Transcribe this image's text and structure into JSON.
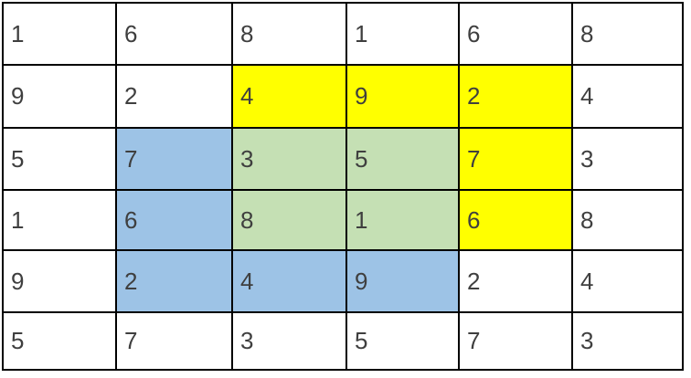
{
  "colors": {
    "white": "#FFFFFF",
    "yellow": "#FFFF00",
    "blue": "#9DC3E6",
    "green": "#C5E0B4",
    "border": "#000000",
    "text": "#3F3F3F"
  },
  "grid": {
    "rows": [
      {
        "cells": [
          {
            "value": "1",
            "bg": "white"
          },
          {
            "value": "6",
            "bg": "white"
          },
          {
            "value": "8",
            "bg": "white"
          },
          {
            "value": "1",
            "bg": "white"
          },
          {
            "value": "6",
            "bg": "white"
          },
          {
            "value": "8",
            "bg": "white"
          }
        ]
      },
      {
        "cells": [
          {
            "value": "9",
            "bg": "white"
          },
          {
            "value": "2",
            "bg": "white"
          },
          {
            "value": "4",
            "bg": "yellow"
          },
          {
            "value": "9",
            "bg": "yellow"
          },
          {
            "value": "2",
            "bg": "yellow"
          },
          {
            "value": "4",
            "bg": "white"
          }
        ]
      },
      {
        "cells": [
          {
            "value": "5",
            "bg": "white"
          },
          {
            "value": "7",
            "bg": "blue"
          },
          {
            "value": "3",
            "bg": "green"
          },
          {
            "value": "5",
            "bg": "green"
          },
          {
            "value": "7",
            "bg": "yellow"
          },
          {
            "value": "3",
            "bg": "white"
          }
        ]
      },
      {
        "cells": [
          {
            "value": "1",
            "bg": "white"
          },
          {
            "value": "6",
            "bg": "blue"
          },
          {
            "value": "8",
            "bg": "green"
          },
          {
            "value": "1",
            "bg": "green"
          },
          {
            "value": "6",
            "bg": "yellow"
          },
          {
            "value": "8",
            "bg": "white"
          }
        ]
      },
      {
        "cells": [
          {
            "value": "9",
            "bg": "white"
          },
          {
            "value": "2",
            "bg": "blue"
          },
          {
            "value": "4",
            "bg": "blue"
          },
          {
            "value": "9",
            "bg": "blue"
          },
          {
            "value": "2",
            "bg": "white"
          },
          {
            "value": "4",
            "bg": "white"
          }
        ]
      },
      {
        "cells": [
          {
            "value": "5",
            "bg": "white"
          },
          {
            "value": "7",
            "bg": "white"
          },
          {
            "value": "3",
            "bg": "white"
          },
          {
            "value": "5",
            "bg": "white"
          },
          {
            "value": "7",
            "bg": "white"
          },
          {
            "value": "3",
            "bg": "white"
          }
        ]
      }
    ]
  }
}
